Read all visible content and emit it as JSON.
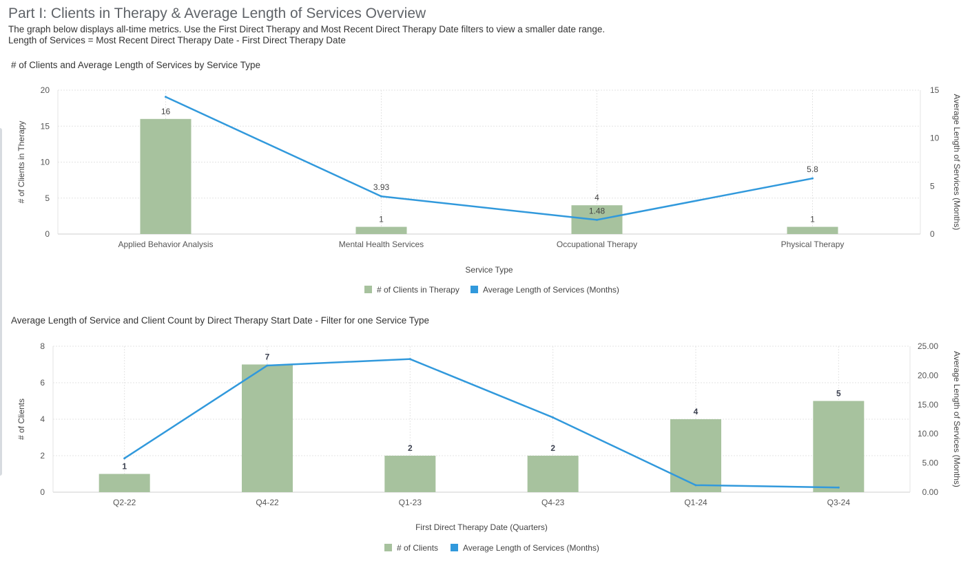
{
  "page": {
    "title": "Part I: Clients in Therapy & Average Length of Services Overview",
    "subtitle_1": "The graph below displays all-time metrics. Use the First Direct Therapy and Most Recent Direct Therapy Date filters to view a smaller date range.",
    "subtitle_2": "Length of Services = Most Recent Direct Therapy Date - First Direct Therapy Date"
  },
  "colors": {
    "bar": "#a7c29e",
    "line": "#3199dc",
    "grid": "#e3e3e3",
    "axis": "#cfcfcf"
  },
  "chart_data": [
    {
      "type": "bar",
      "title": "# of Clients and Average Length of Services by Service Type",
      "categories": [
        "Applied Behavior Analysis",
        "Mental Health Services",
        "Occupational Therapy",
        "Physical Therapy"
      ],
      "series": [
        {
          "name": "# of Clients in Therapy",
          "type": "bar",
          "axis": "left",
          "values": [
            16,
            1,
            4,
            1
          ],
          "labels": [
            "16",
            "1",
            "4",
            "1"
          ]
        },
        {
          "name": "Average Length of Services (Months)",
          "type": "line",
          "axis": "right",
          "values": [
            14.3,
            3.93,
            1.48,
            5.8
          ],
          "labels": [
            "",
            "3.93",
            "1.48",
            "5.8"
          ]
        }
      ],
      "xlabel": "Service Type",
      "ylabel": "# of Clients in Therapy",
      "y2label": "Average Length of Services (Months)",
      "ylim": [
        0,
        20
      ],
      "yticks": [
        0,
        5,
        10,
        15,
        20
      ],
      "ytick_labels": [
        "0",
        "5",
        "10",
        "15",
        "20"
      ],
      "y2lim": [
        0,
        15
      ],
      "y2ticks": [
        0,
        5,
        10,
        15
      ],
      "y2tick_labels": [
        "0",
        "5",
        "10",
        "15"
      ],
      "legend": "bottom-center"
    },
    {
      "type": "bar",
      "title": "Average Length of Service and Client Count by Direct Therapy Start Date - Filter for one Service Type",
      "categories": [
        "Q2-22",
        "Q4-22",
        "Q1-23",
        "Q4-23",
        "Q1-24",
        "Q3-24"
      ],
      "series": [
        {
          "name": "# of Clients",
          "type": "bar",
          "axis": "left",
          "values": [
            1,
            7,
            2,
            2,
            4,
            5
          ],
          "labels": [
            "1",
            "7",
            "2",
            "2",
            "4",
            "5"
          ]
        },
        {
          "name": "Average Length of Services (Months)",
          "type": "line",
          "axis": "right",
          "values": [
            5.8,
            21.7,
            22.8,
            12.8,
            1.2,
            0.8
          ],
          "labels": [
            "",
            "",
            "",
            "",
            "",
            ""
          ]
        }
      ],
      "xlabel": "First Direct Therapy Date (Quarters)",
      "ylabel": "# of Clients",
      "y2label": "Average Length of Services (Months)",
      "ylim": [
        0,
        8
      ],
      "yticks": [
        0,
        2,
        4,
        6,
        8
      ],
      "ytick_labels": [
        "0",
        "2",
        "4",
        "6",
        "8"
      ],
      "y2lim": [
        0,
        25
      ],
      "y2ticks": [
        0,
        5,
        10,
        15,
        20,
        25
      ],
      "y2tick_labels": [
        "0.00",
        "5.00",
        "10.00",
        "15.00",
        "20.00",
        "25.00"
      ],
      "legend": "bottom-center"
    }
  ]
}
